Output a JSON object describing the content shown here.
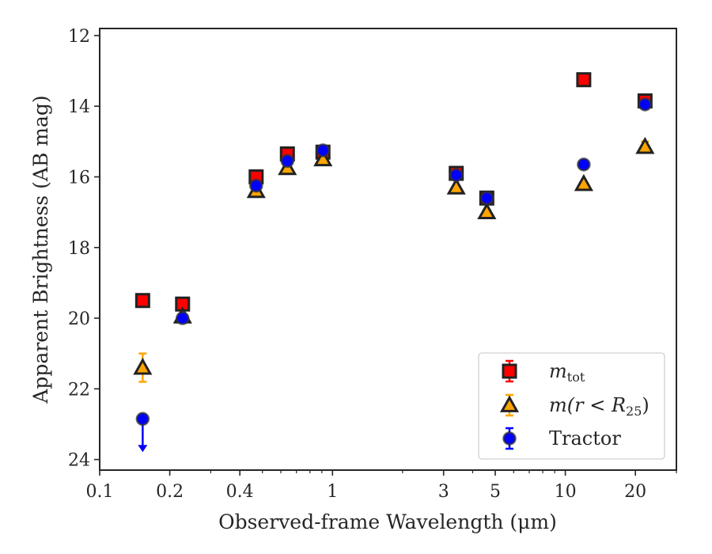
{
  "chart_data": {
    "type": "scatter",
    "title": "",
    "xlabel": "Observed-frame Wavelength (μm)",
    "ylabel": "Apparent Brightness (AB mag)",
    "xscale": "log",
    "xlim": [
      0.1,
      30
    ],
    "ylim": [
      24.3,
      11.8
    ],
    "y_inverted": true,
    "grid": false,
    "legend_position": "lower-right",
    "x_ticks": [
      {
        "value": 0.1,
        "label": "0.1"
      },
      {
        "value": 0.2,
        "label": "0.2"
      },
      {
        "value": 0.4,
        "label": "0.4"
      },
      {
        "value": 1,
        "label": "1"
      },
      {
        "value": 3,
        "label": "3"
      },
      {
        "value": 5,
        "label": "5"
      },
      {
        "value": 10,
        "label": "10"
      },
      {
        "value": 20,
        "label": "20"
      }
    ],
    "y_ticks": [
      {
        "value": 12,
        "label": "12"
      },
      {
        "value": 14,
        "label": "14"
      },
      {
        "value": 16,
        "label": "16"
      },
      {
        "value": 18,
        "label": "18"
      },
      {
        "value": 20,
        "label": "20"
      },
      {
        "value": 22,
        "label": "22"
      },
      {
        "value": 24,
        "label": "24"
      }
    ],
    "series": [
      {
        "name": "m_tot",
        "legend_text": "m",
        "legend_sub": "tot",
        "marker": "square",
        "color": "#ff0000",
        "edge": "#222222",
        "err_color": "#ff0000",
        "points": [
          {
            "x": 0.153,
            "y": 19.5
          },
          {
            "x": 0.227,
            "y": 19.6
          },
          {
            "x": 0.47,
            "y": 16.0
          },
          {
            "x": 0.64,
            "y": 15.35
          },
          {
            "x": 0.91,
            "y": 15.3
          },
          {
            "x": 3.4,
            "y": 15.9
          },
          {
            "x": 4.6,
            "y": 16.6
          },
          {
            "x": 12.0,
            "y": 13.25
          },
          {
            "x": 22.0,
            "y": 13.85
          }
        ]
      },
      {
        "name": "m(r < R25)",
        "legend_text": "m(r < R",
        "legend_sub": "25",
        "legend_close": ")",
        "marker": "triangle",
        "color": "#ffa500",
        "edge": "#222222",
        "err_color": "#ffa500",
        "points": [
          {
            "x": 0.153,
            "y": 21.4,
            "err": 0.4
          },
          {
            "x": 0.227,
            "y": 19.95
          },
          {
            "x": 0.47,
            "y": 16.4
          },
          {
            "x": 0.64,
            "y": 15.75
          },
          {
            "x": 0.91,
            "y": 15.5
          },
          {
            "x": 3.4,
            "y": 16.3
          },
          {
            "x": 4.6,
            "y": 17.0
          },
          {
            "x": 12.0,
            "y": 16.2
          },
          {
            "x": 22.0,
            "y": 15.15,
            "err": 0.15
          }
        ]
      },
      {
        "name": "Tractor",
        "legend_text": "Tractor",
        "marker": "circle",
        "color": "#0000ff",
        "edge": "#333333",
        "err_color": "#0000ff",
        "points": [
          {
            "x": 0.153,
            "y": 22.85,
            "upper_limit": true
          },
          {
            "x": 0.227,
            "y": 20.0
          },
          {
            "x": 0.47,
            "y": 16.25
          },
          {
            "x": 0.64,
            "y": 15.55
          },
          {
            "x": 0.91,
            "y": 15.25
          },
          {
            "x": 3.4,
            "y": 15.95
          },
          {
            "x": 4.6,
            "y": 16.6
          },
          {
            "x": 12.0,
            "y": 15.65
          },
          {
            "x": 22.0,
            "y": 13.95
          }
        ]
      }
    ]
  }
}
